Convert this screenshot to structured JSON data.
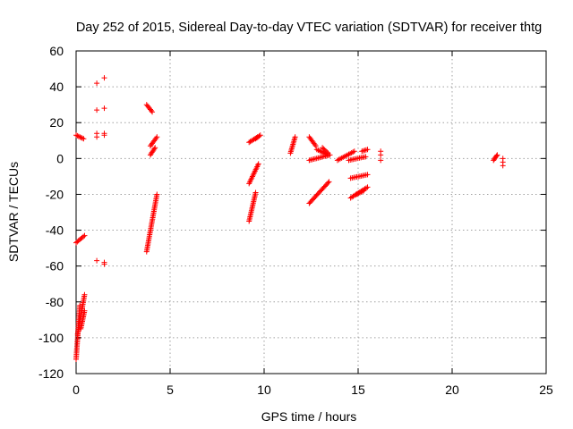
{
  "chart_data": {
    "type": "scatter",
    "title": "Day 252 of 2015, Sidereal Day-to-day VTEC variation (SDTVAR) for receiver thtg",
    "xlabel": "GPS time / hours",
    "ylabel": "SDTVAR / TECUs",
    "xlim": [
      0,
      25
    ],
    "ylim": [
      -120,
      60
    ],
    "xticks": [
      "0",
      "5",
      "10",
      "15",
      "20",
      "25"
    ],
    "yticks": [
      "-120",
      "-100",
      "-80",
      "-60",
      "-40",
      "-20",
      "0",
      "20",
      "40",
      "60"
    ],
    "grid": true,
    "marker": "plus",
    "color": "#ff0000",
    "segments": [
      {
        "x": [
          0.0,
          0.4
        ],
        "y": [
          13,
          11
        ]
      },
      {
        "x": [
          0.0,
          0.45
        ],
        "y": [
          -47,
          -43
        ]
      },
      {
        "x": [
          0.0,
          0.2
        ],
        "y": [
          -112,
          -82
        ]
      },
      {
        "x": [
          0.08,
          0.45
        ],
        "y": [
          -98,
          -76
        ]
      },
      {
        "x": [
          0.25,
          0.45
        ],
        "y": [
          -95,
          -85
        ]
      },
      {
        "x": [
          3.75,
          4.05
        ],
        "y": [
          30,
          26
        ]
      },
      {
        "x": [
          3.75,
          4.3
        ],
        "y": [
          -52,
          -20
        ]
      },
      {
        "x": [
          3.95,
          4.3
        ],
        "y": [
          7,
          12
        ]
      },
      {
        "x": [
          3.95,
          4.2
        ],
        "y": [
          2,
          6
        ]
      },
      {
        "x": [
          9.2,
          9.55
        ],
        "y": [
          -35,
          -19
        ]
      },
      {
        "x": [
          9.2,
          9.7
        ],
        "y": [
          -14,
          -3
        ]
      },
      {
        "x": [
          9.2,
          9.65
        ],
        "y": [
          9,
          12
        ]
      },
      {
        "x": [
          9.55,
          9.8
        ],
        "y": [
          11,
          13
        ]
      },
      {
        "x": [
          11.4,
          11.65
        ],
        "y": [
          3,
          12
        ]
      },
      {
        "x": [
          12.4,
          12.75
        ],
        "y": [
          12,
          7
        ]
      },
      {
        "x": [
          12.4,
          13.5
        ],
        "y": [
          -1,
          2
        ]
      },
      {
        "x": [
          12.4,
          13.45
        ],
        "y": [
          -25,
          -13
        ]
      },
      {
        "x": [
          12.8,
          13.4
        ],
        "y": [
          5,
          2
        ]
      },
      {
        "x": [
          13.1,
          13.4
        ],
        "y": [
          6,
          3
        ]
      },
      {
        "x": [
          13.9,
          14.8
        ],
        "y": [
          -1,
          4
        ]
      },
      {
        "x": [
          14.5,
          15.4
        ],
        "y": [
          -1,
          1
        ]
      },
      {
        "x": [
          14.6,
          15.5
        ],
        "y": [
          -22,
          -16
        ]
      },
      {
        "x": [
          14.6,
          15.5
        ],
        "y": [
          -11,
          -9
        ]
      },
      {
        "x": [
          14.9,
          15.3
        ],
        "y": [
          -20,
          -18
        ]
      },
      {
        "x": [
          15.2,
          15.5
        ],
        "y": [
          4,
          5
        ]
      },
      {
        "x": [
          22.2,
          22.4
        ],
        "y": [
          -1,
          2
        ]
      }
    ],
    "points": [
      {
        "x": 1.1,
        "y": 42
      },
      {
        "x": 1.5,
        "y": 45
      },
      {
        "x": 1.1,
        "y": 27
      },
      {
        "x": 1.5,
        "y": 28
      },
      {
        "x": 1.1,
        "y": 14
      },
      {
        "x": 1.1,
        "y": 12
      },
      {
        "x": 1.5,
        "y": 14
      },
      {
        "x": 1.5,
        "y": 13
      },
      {
        "x": 1.1,
        "y": -57
      },
      {
        "x": 1.5,
        "y": -59
      },
      {
        "x": 1.5,
        "y": -58
      },
      {
        "x": 16.2,
        "y": 4
      },
      {
        "x": 16.2,
        "y": 2
      },
      {
        "x": 16.2,
        "y": -1
      },
      {
        "x": 22.7,
        "y": 0
      },
      {
        "x": 22.7,
        "y": -2
      },
      {
        "x": 22.7,
        "y": -4
      }
    ]
  }
}
